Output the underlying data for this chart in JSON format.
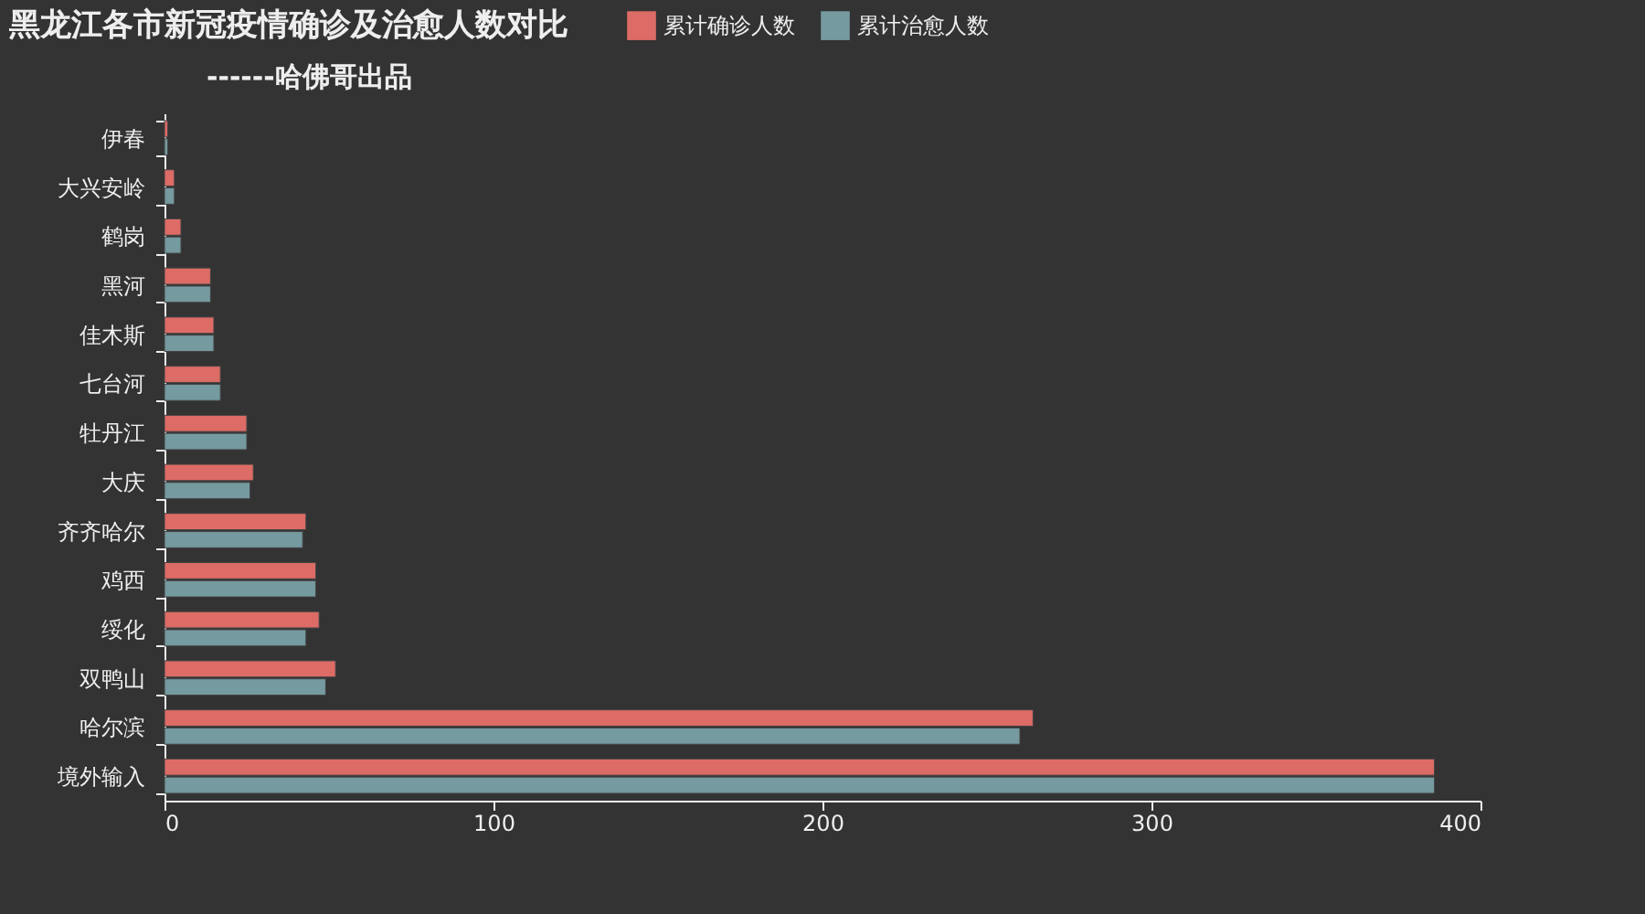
{
  "chart_data": {
    "type": "bar",
    "orientation": "horizontal",
    "title": "黑龙江各市新冠疫情确诊及治愈人数对比",
    "subtitle": "------哈佛哥出品",
    "categories": [
      "伊春",
      "大兴安岭",
      "鹤岗",
      "黑河",
      "佳木斯",
      "七台河",
      "牡丹江",
      "大庆",
      "齐齐哈尔",
      "鸡西",
      "绥化",
      "双鸭山",
      "哈尔滨",
      "境外输入"
    ],
    "series": [
      {
        "name": "累计确诊人数",
        "color": "#dd6b66",
        "values": [
          1,
          3,
          5,
          14,
          15,
          17,
          25,
          27,
          43,
          46,
          47,
          52,
          264,
          386
        ]
      },
      {
        "name": "累计治愈人数",
        "color": "#759aa0",
        "values": [
          1,
          3,
          5,
          14,
          15,
          17,
          25,
          26,
          42,
          46,
          43,
          49,
          260,
          386
        ]
      }
    ],
    "xlim": [
      0,
      400
    ],
    "xticks": [
      0,
      100,
      200,
      300,
      400
    ],
    "grid": false,
    "legend": "top"
  }
}
